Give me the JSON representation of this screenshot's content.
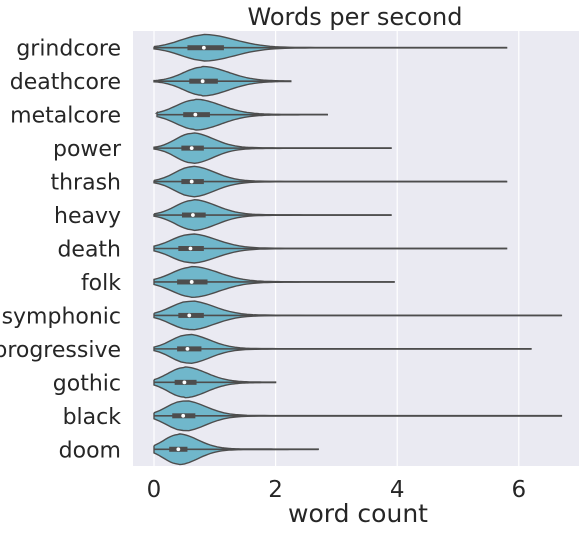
{
  "chart_data": {
    "type": "violin",
    "title": "Words per second",
    "xlabel": "word count",
    "ylabel": "",
    "xlim": [
      -0.4,
      6.9
    ],
    "xticks": [
      0,
      2,
      4,
      6
    ],
    "orientation": "horizontal",
    "grid": true,
    "background": "#eaeaf2",
    "violin_color": "#70b7cb",
    "line_color": "#4d4d4d",
    "categories": [
      "grindcore",
      "deathcore",
      "metalcore",
      "power",
      "thrash",
      "heavy",
      "death",
      "folk",
      "symphonic",
      "progressive",
      "gothic",
      "black",
      "doom"
    ],
    "series": [
      {
        "label": "grindcore",
        "median": 0.82,
        "q1": 0.55,
        "q3": 1.15,
        "min": 0.0,
        "max": 5.8,
        "peak_width": 0.38,
        "spread": 0.5
      },
      {
        "label": "deathcore",
        "median": 0.8,
        "q1": 0.58,
        "q3": 1.05,
        "min": 0.0,
        "max": 2.25,
        "peak_width": 0.42,
        "spread": 0.42
      },
      {
        "label": "metalcore",
        "median": 0.68,
        "q1": 0.48,
        "q3": 0.92,
        "min": 0.05,
        "max": 2.85,
        "peak_width": 0.44,
        "spread": 0.42
      },
      {
        "label": "power",
        "median": 0.62,
        "q1": 0.45,
        "q3": 0.82,
        "min": 0.0,
        "max": 3.9,
        "peak_width": 0.44,
        "spread": 0.35
      },
      {
        "label": "thrash",
        "median": 0.62,
        "q1": 0.45,
        "q3": 0.82,
        "min": 0.0,
        "max": 5.8,
        "peak_width": 0.44,
        "spread": 0.37
      },
      {
        "label": "heavy",
        "median": 0.64,
        "q1": 0.46,
        "q3": 0.85,
        "min": 0.0,
        "max": 3.9,
        "peak_width": 0.44,
        "spread": 0.38
      },
      {
        "label": "death",
        "median": 0.6,
        "q1": 0.4,
        "q3": 0.82,
        "min": 0.0,
        "max": 5.8,
        "peak_width": 0.42,
        "spread": 0.42
      },
      {
        "label": "folk",
        "median": 0.62,
        "q1": 0.38,
        "q3": 0.88,
        "min": 0.0,
        "max": 3.95,
        "peak_width": 0.44,
        "spread": 0.44
      },
      {
        "label": "symphonic",
        "median": 0.58,
        "q1": 0.4,
        "q3": 0.82,
        "min": 0.0,
        "max": 6.7,
        "peak_width": 0.42,
        "spread": 0.4
      },
      {
        "label": "progressive",
        "median": 0.55,
        "q1": 0.38,
        "q3": 0.78,
        "min": 0.0,
        "max": 6.2,
        "peak_width": 0.42,
        "spread": 0.36
      },
      {
        "label": "gothic",
        "median": 0.5,
        "q1": 0.34,
        "q3": 0.7,
        "min": 0.0,
        "max": 2.0,
        "peak_width": 0.44,
        "spread": 0.36
      },
      {
        "label": "black",
        "median": 0.48,
        "q1": 0.3,
        "q3": 0.68,
        "min": 0.0,
        "max": 6.7,
        "peak_width": 0.44,
        "spread": 0.36
      },
      {
        "label": "doom",
        "median": 0.4,
        "q1": 0.25,
        "q3": 0.55,
        "min": 0.0,
        "max": 2.7,
        "peak_width": 0.44,
        "spread": 0.32
      }
    ]
  }
}
